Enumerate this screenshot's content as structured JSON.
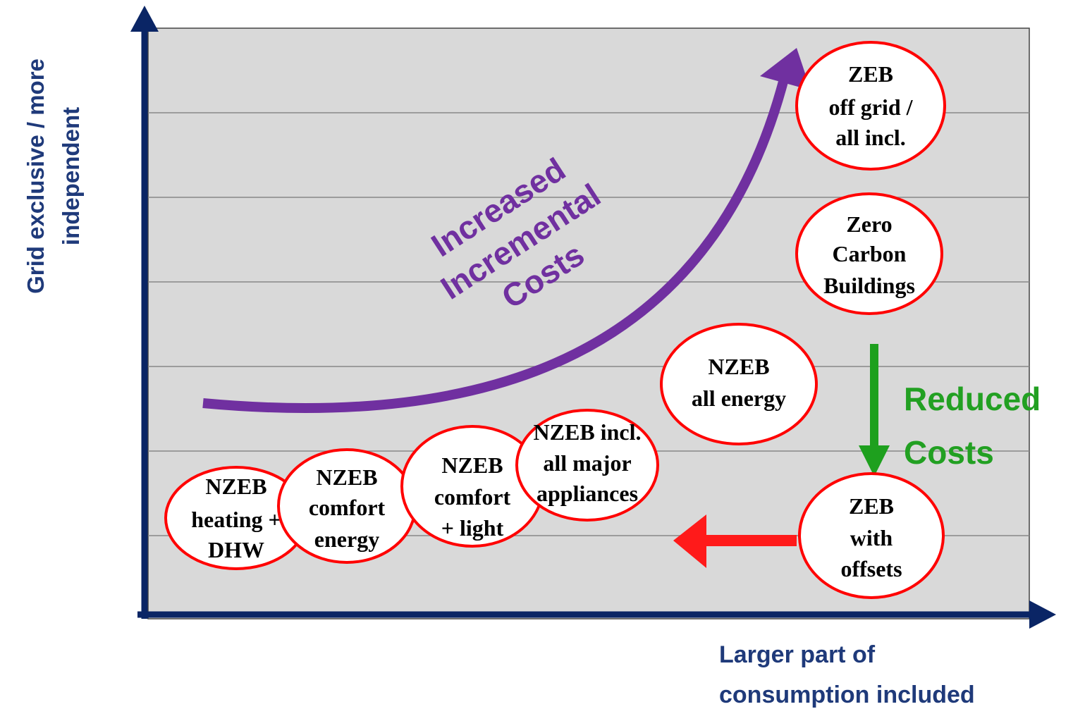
{
  "y_axis_label": [
    "Grid exclusive / more",
    "independent"
  ],
  "x_axis_label": [
    "Larger part of",
    "consumption included"
  ],
  "nodes": [
    {
      "label": [
        "NZEB",
        "heating +",
        "DHW"
      ]
    },
    {
      "label": [
        "NZEB",
        "comfort",
        "energy"
      ]
    },
    {
      "label": [
        "NZEB",
        "comfort",
        "+ light"
      ]
    },
    {
      "label": [
        "NZEB incl.",
        "all major",
        "appliances"
      ]
    },
    {
      "label": [
        "NZEB",
        "all energy"
      ]
    },
    {
      "label": [
        "Zero",
        "Carbon",
        "Buildings"
      ]
    },
    {
      "label": [
        "ZEB",
        "off grid /",
        "all incl."
      ]
    },
    {
      "label": [
        "ZEB",
        "with",
        "offsets"
      ]
    }
  ],
  "annotations": {
    "increased": [
      "Increased",
      "Incremental",
      "Costs"
    ],
    "reduced": [
      "Reduced",
      "Costs"
    ]
  }
}
